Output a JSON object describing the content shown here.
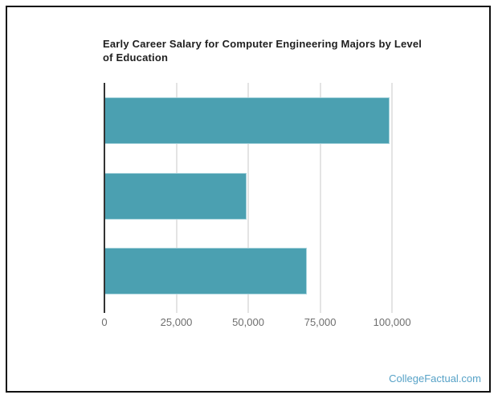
{
  "chart_data": {
    "type": "bar",
    "orientation": "horizontal",
    "title": "Early Career Salary for Computer Engineering Majors by Level of Education",
    "categories": [
      "",
      "",
      ""
    ],
    "values": [
      99000,
      49300,
      70400
    ],
    "xlabel": "",
    "ylabel": "",
    "x_ticks": [
      0,
      25000,
      50000,
      75000,
      100000
    ],
    "x_tick_labels": [
      "0",
      "25,000",
      "50,000",
      "75,000",
      "100,000"
    ],
    "xlim": [
      0,
      107500
    ],
    "grid": true,
    "legend": false
  },
  "footer": {
    "link_text": "CollegeFactual.com"
  },
  "colors": {
    "bar": "#4ba0b1",
    "bar_border": "#a5d2db",
    "gridline": "#c9c9c9",
    "axis": "#333333",
    "tick_label": "#6e6e6e",
    "title": "#1f1f1f",
    "footer_link": "#57a2c7",
    "frame_border": "#111111"
  }
}
